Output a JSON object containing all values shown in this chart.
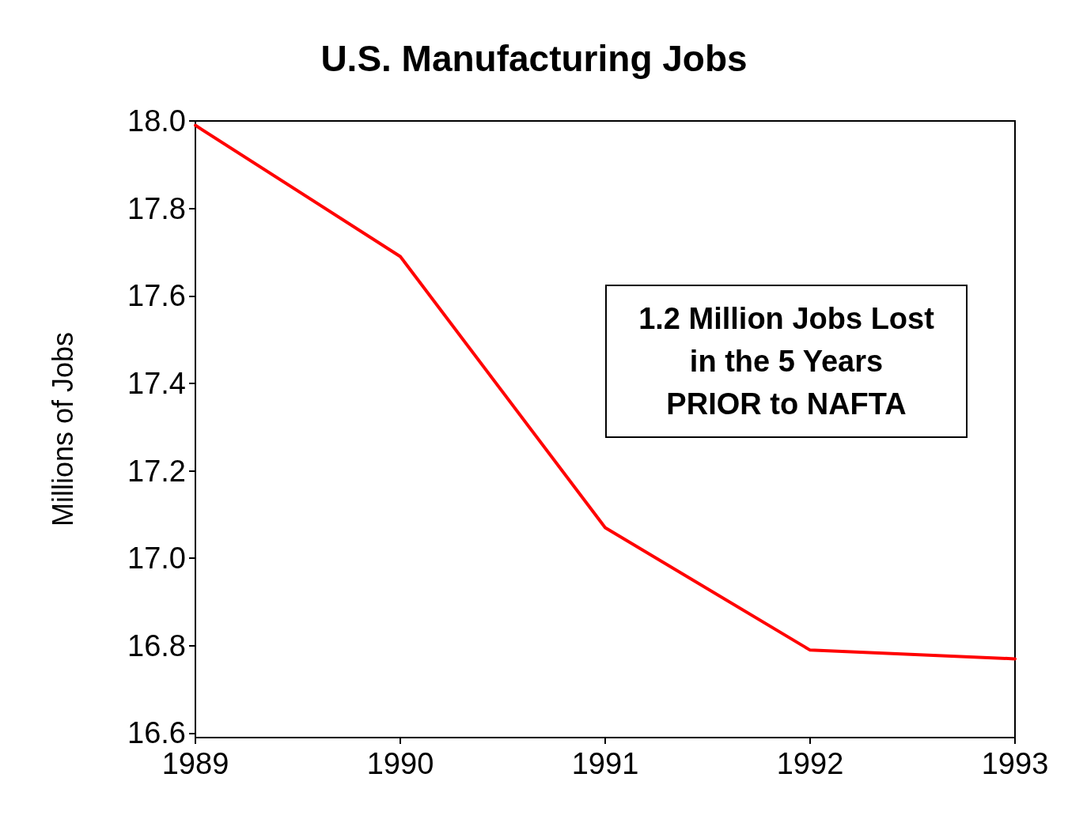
{
  "chart_data": {
    "type": "line",
    "title": "U.S. Manufacturing Jobs",
    "ylabel": "Millions of Jobs",
    "x": [
      1989,
      1990,
      1991,
      1992,
      1993
    ],
    "series": [
      {
        "color": "#ff0000",
        "values": [
          17.99,
          17.69,
          17.07,
          16.79,
          16.77
        ]
      }
    ],
    "xlim": [
      1989,
      1993
    ],
    "xticks": [
      1989,
      1990,
      1991,
      1992,
      1993
    ],
    "ylim": [
      16.59,
      18.0
    ],
    "yticks": [
      16.6,
      16.8,
      {
        "value": 17,
        "label": "17.0"
      },
      17.2,
      17.4,
      17.6,
      17.8,
      {
        "value": 18,
        "label": "18.0"
      }
    ],
    "grid": false,
    "marker": "none",
    "line_style": "solid",
    "annotations": [
      "1.2 Million Jobs Lost\nin the 5 Years\nPRIOR to NAFTA"
    ]
  }
}
